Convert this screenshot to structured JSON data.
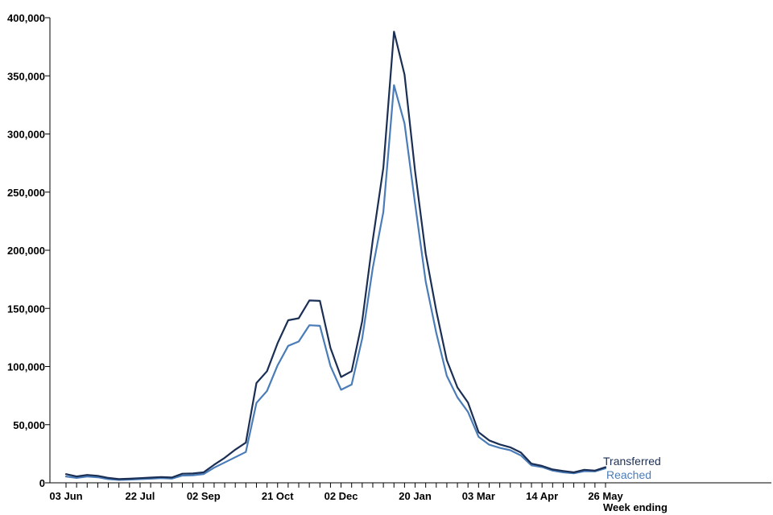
{
  "chart_data": {
    "type": "line",
    "title": "",
    "xlabel": "Week ending",
    "ylabel": "",
    "ylim": [
      0,
      400000
    ],
    "y_ticks": [
      0,
      50000,
      100000,
      150000,
      200000,
      250000,
      300000,
      350000,
      400000
    ],
    "y_tick_labels": [
      "0",
      "50,000",
      "100,000",
      "150,000",
      "200,000",
      "250,000",
      "300,000",
      "350,000",
      "400,000"
    ],
    "x": [
      "03 Jun",
      "10 Jun",
      "17 Jun",
      "24 Jun",
      "01 Jul",
      "08 Jul",
      "15 Jul",
      "22 Jul",
      "29 Jul",
      "05 Aug",
      "12 Aug",
      "19 Aug",
      "26 Aug",
      "02 Sep",
      "09 Sep",
      "16 Sep",
      "23 Sep",
      "30 Sep",
      "07 Oct",
      "14 Oct",
      "21 Oct",
      "28 Oct",
      "04 Nov",
      "11 Nov",
      "18 Nov",
      "25 Nov",
      "02 Dec",
      "09 Dec",
      "16 Dec",
      "23 Dec",
      "30 Dec",
      "06 Jan",
      "13 Jan",
      "20 Jan",
      "27 Jan",
      "03 Feb",
      "10 Feb",
      "17 Feb",
      "24 Feb",
      "03 Mar",
      "10 Mar",
      "17 Mar",
      "24 Mar",
      "31 Mar",
      "07 Apr",
      "14 Apr",
      "21 Apr",
      "28 Apr",
      "05 May",
      "12 May",
      "19 May",
      "26 May"
    ],
    "x_tick_labels": [
      "03 Jun",
      "22 Jul",
      "02 Sep",
      "21 Oct",
      "02 Dec",
      "20 Jan",
      "03 Mar",
      "14 Apr",
      "26 May"
    ],
    "x_tick_label_indices": [
      0,
      7,
      13,
      20,
      26,
      33,
      39,
      45,
      51
    ],
    "grid": false,
    "legend": "inline labels at line ends",
    "series": [
      {
        "name": "Transferred",
        "color": "#1b2f55",
        "values": [
          7500,
          5500,
          6800,
          6000,
          4200,
          3200,
          3500,
          4000,
          4500,
          5000,
          4600,
          7800,
          8000,
          9000,
          15500,
          21500,
          28500,
          34500,
          85800,
          96000,
          120000,
          139800,
          141500,
          156800,
          156500,
          116000,
          91000,
          96000,
          139000,
          209000,
          271000,
          388000,
          351000,
          268000,
          197000,
          148000,
          105500,
          82000,
          69000,
          43500,
          36500,
          33000,
          30500,
          26000,
          16500,
          14500,
          11500,
          10200,
          9000,
          11200,
          10500,
          13500
        ]
      },
      {
        "name": "Reached",
        "color": "#4a7cb8",
        "values": [
          5500,
          4200,
          5400,
          4800,
          3200,
          2500,
          2800,
          3200,
          3500,
          4000,
          3600,
          6200,
          6500,
          7500,
          13000,
          17500,
          22000,
          26500,
          68700,
          79000,
          101000,
          117800,
          121500,
          135500,
          135000,
          100500,
          80000,
          84500,
          124000,
          185000,
          233000,
          342000,
          309000,
          240000,
          173000,
          129000,
          92000,
          73500,
          61000,
          39500,
          32800,
          30000,
          28000,
          23500,
          15000,
          13500,
          10500,
          9000,
          8200,
          10000,
          9800,
          12500
        ]
      }
    ]
  }
}
